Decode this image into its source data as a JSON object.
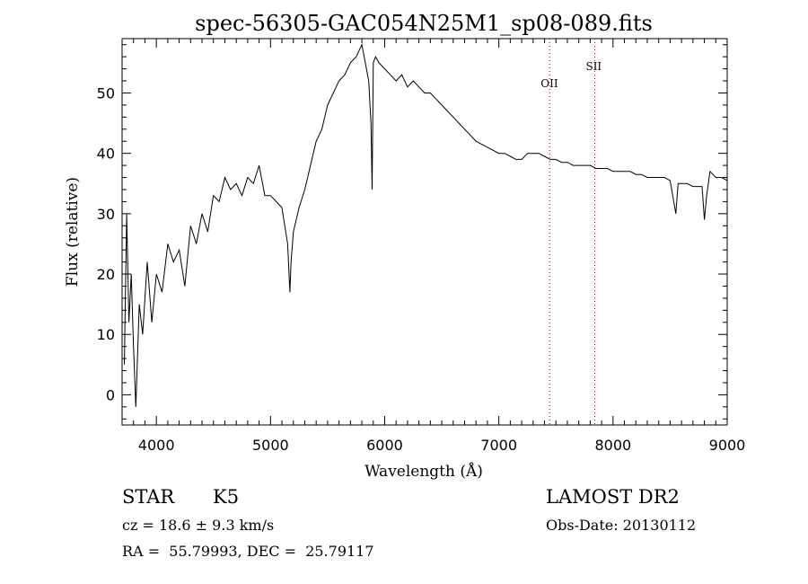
{
  "chart_data": {
    "type": "line",
    "title": "spec-56305-GAC054N25M1_sp08-089.fits",
    "xlabel": "Wavelength (Å)",
    "ylabel": "Flux (relative)",
    "xlim": [
      3700,
      9000
    ],
    "ylim": [
      -5,
      59
    ],
    "xticks": [
      4000,
      5000,
      6000,
      7000,
      8000,
      9000
    ],
    "yticks": [
      0,
      10,
      20,
      30,
      40,
      50
    ],
    "grid": false,
    "series": [
      {
        "x": [
          3720,
          3740,
          3760,
          3780,
          3800,
          3820,
          3850,
          3880,
          3920,
          3960,
          4000,
          4050,
          4100,
          4150,
          4200,
          4250,
          4300,
          4350,
          4400,
          4450,
          4500,
          4550,
          4600,
          4650,
          4700,
          4750,
          4800,
          4850,
          4900,
          4950,
          5000,
          5050,
          5100,
          5150,
          5170,
          5180,
          5200,
          5250,
          5300,
          5350,
          5400,
          5450,
          5500,
          5550,
          5600,
          5650,
          5700,
          5750,
          5800,
          5830,
          5860,
          5880,
          5890,
          5895,
          5900,
          5920,
          5950,
          6000,
          6050,
          6100,
          6150,
          6200,
          6250,
          6300,
          6350,
          6400,
          6450,
          6500,
          6550,
          6600,
          6650,
          6700,
          6750,
          6800,
          6850,
          6900,
          6950,
          7000,
          7050,
          7100,
          7150,
          7200,
          7250,
          7300,
          7350,
          7400,
          7450,
          7500,
          7550,
          7600,
          7650,
          7700,
          7750,
          7800,
          7850,
          7900,
          7950,
          8000,
          8050,
          8100,
          8150,
          8200,
          8250,
          8300,
          8350,
          8400,
          8450,
          8500,
          8550,
          8570,
          8600,
          8650,
          8700,
          8750,
          8780,
          8800,
          8820,
          8850,
          8900,
          8950,
          9000
        ],
        "y": [
          5,
          30,
          12,
          20,
          8,
          -2,
          15,
          10,
          22,
          12,
          20,
          17,
          25,
          22,
          24,
          18,
          28,
          25,
          30,
          27,
          33,
          32,
          36,
          34,
          35,
          33,
          36,
          35,
          38,
          33,
          33,
          32,
          31,
          25,
          17,
          22,
          27,
          31,
          34,
          38,
          42,
          44,
          48,
          50,
          52,
          53,
          55,
          56,
          58,
          55,
          52,
          45,
          34,
          44,
          55,
          56,
          55,
          54,
          53,
          52,
          53,
          51,
          52,
          51,
          50,
          50,
          49,
          48,
          47,
          46,
          45,
          44,
          43,
          42,
          41.5,
          41,
          40.5,
          40,
          40,
          39.5,
          39,
          39,
          40,
          40,
          40,
          39.5,
          39,
          39,
          38.5,
          38.5,
          38,
          38,
          38,
          38,
          37.5,
          37.5,
          37.5,
          37,
          37,
          37,
          37,
          36.5,
          36.5,
          36,
          36,
          36,
          36,
          35.5,
          30,
          35,
          35,
          35,
          34.5,
          34.5,
          34.5,
          29,
          33,
          37,
          36,
          36,
          35.5
        ]
      }
    ],
    "lines": [
      {
        "x": 7445,
        "label": "OII"
      },
      {
        "x": 7840,
        "label": "SII"
      }
    ]
  },
  "info": {
    "object_class": "STAR",
    "subclass": "K5",
    "redshift": "cz = 18.6 ± 9.3 km/s",
    "coords": "RA =  55.79993, DEC =  25.79117",
    "survey": "LAMOST DR2",
    "obs_date": "Obs-Date: 20130112"
  }
}
